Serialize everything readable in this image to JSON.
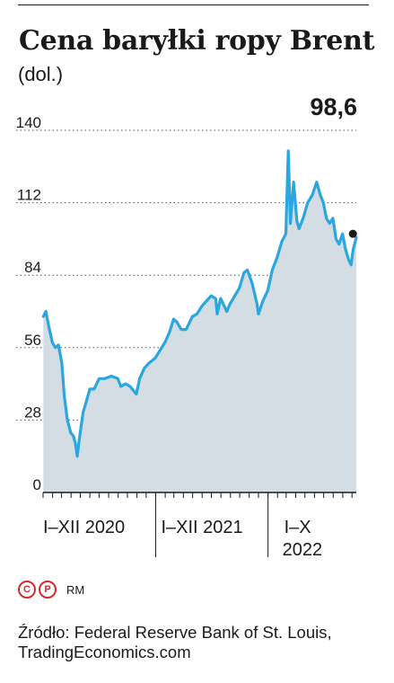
{
  "title": "Cena baryłki ropy Brent",
  "unit": "(dol.)",
  "last_value": "98,6",
  "chart_data": {
    "type": "area",
    "title": "Cena baryłki ropy Brent",
    "ylabel": "(dol.)",
    "ylim": [
      0,
      140
    ],
    "yticks": [
      0,
      28,
      56,
      84,
      112,
      140
    ],
    "ytick_labels": [
      "0",
      "28",
      "56",
      "84",
      "112",
      "140"
    ],
    "x_periods": [
      {
        "label": "I–XII 2020"
      },
      {
        "label": "I–XII 2021"
      },
      {
        "label": "I–X 2022"
      }
    ],
    "grid": "horizontal dotted",
    "last_point": {
      "date": "2022-10",
      "value": 98.6
    },
    "x": [
      "2020-01-02",
      "2020-01-10",
      "2020-01-20",
      "2020-01-31",
      "2020-02-10",
      "2020-02-20",
      "2020-03-02",
      "2020-03-10",
      "2020-03-20",
      "2020-03-31",
      "2020-04-08",
      "2020-04-15",
      "2020-04-21",
      "2020-04-28",
      "2020-05-10",
      "2020-05-20",
      "2020-06-01",
      "2020-06-15",
      "2020-07-01",
      "2020-07-20",
      "2020-08-10",
      "2020-08-31",
      "2020-09-10",
      "2020-09-25",
      "2020-10-10",
      "2020-10-30",
      "2020-11-10",
      "2020-11-25",
      "2020-12-10",
      "2020-12-31",
      "2021-01-15",
      "2021-01-31",
      "2021-02-15",
      "2021-02-28",
      "2021-03-10",
      "2021-03-25",
      "2021-04-10",
      "2021-04-30",
      "2021-05-15",
      "2021-05-31",
      "2021-06-15",
      "2021-06-30",
      "2021-07-15",
      "2021-07-20",
      "2021-07-31",
      "2021-08-20",
      "2021-08-31",
      "2021-09-15",
      "2021-09-30",
      "2021-10-15",
      "2021-10-26",
      "2021-11-10",
      "2021-11-26",
      "2021-12-01",
      "2021-12-15",
      "2021-12-31",
      "2022-01-15",
      "2022-01-31",
      "2022-02-15",
      "2022-02-28",
      "2022-03-08",
      "2022-03-15",
      "2022-03-25",
      "2022-04-05",
      "2022-04-12",
      "2022-04-25",
      "2022-05-10",
      "2022-05-25",
      "2022-06-08",
      "2022-06-20",
      "2022-06-30",
      "2022-07-10",
      "2022-07-20",
      "2022-07-31",
      "2022-08-10",
      "2022-08-20",
      "2022-08-31",
      "2022-09-10",
      "2022-09-20",
      "2022-09-28",
      "2022-10-05",
      "2022-10-15"
    ],
    "values": [
      68,
      70,
      64,
      58,
      56,
      57,
      50,
      37,
      28,
      23,
      22,
      19,
      14,
      21,
      31,
      35,
      40,
      40,
      44,
      44,
      45,
      44,
      41,
      42,
      41,
      38,
      44,
      48,
      50,
      52,
      55,
      58,
      62,
      67,
      66,
      63,
      63,
      68,
      69,
      72,
      74,
      76,
      75,
      69,
      75,
      70,
      73,
      76,
      79,
      85,
      86,
      81,
      73,
      69,
      74,
      78,
      86,
      91,
      97,
      100,
      132,
      104,
      120,
      105,
      102,
      106,
      112,
      115,
      120,
      115,
      112,
      106,
      104,
      106,
      98,
      96,
      100,
      94,
      90,
      88,
      94,
      98.6
    ]
  },
  "source": "Źródło: Federal Reserve Bank of St. Louis, TradingEconomics.com",
  "logo": {
    "c": "C",
    "p": "P",
    "rm": "RM",
    "c_icon": "copyright-icon",
    "p_icon": "phonogram-icon"
  },
  "colors": {
    "line": "#2aa7df",
    "fill": "#d3dde3",
    "dot": "#1a1a1a",
    "logo": "#d62b2b"
  }
}
